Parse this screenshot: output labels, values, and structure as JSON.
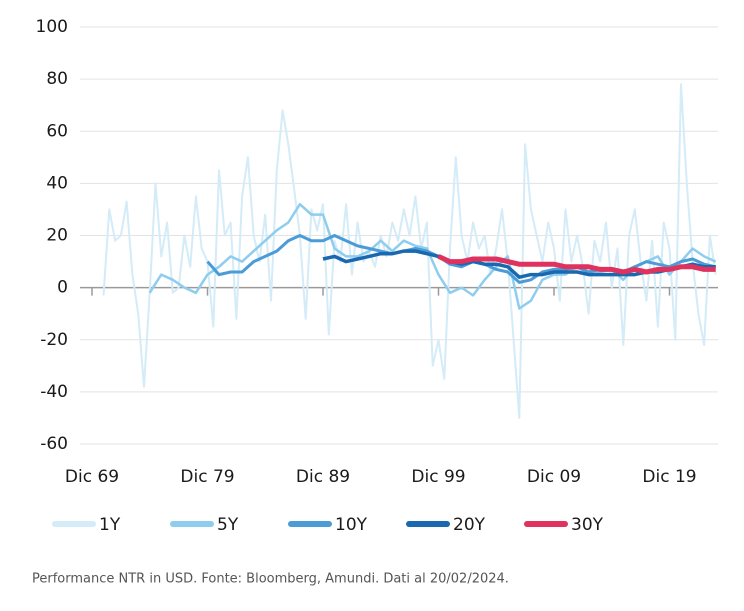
{
  "chart_data": {
    "type": "line",
    "footnote": "Performance NTR in USD. Fonte: Bloomberg, Amundi. Dati al 20/02/2024.",
    "xlim": [
      0,
      54.2
    ],
    "xticks": [
      {
        "value": 0,
        "label": "Dic 69"
      },
      {
        "value": 10,
        "label": "Dic 79"
      },
      {
        "value": 20,
        "label": "Dic 89"
      },
      {
        "value": 30,
        "label": "Dic 99"
      },
      {
        "value": 40,
        "label": "Dic 09"
      },
      {
        "value": 50,
        "label": "Dic 19"
      }
    ],
    "ylim": [
      -60,
      100
    ],
    "yticks": [
      -60,
      -40,
      -20,
      0,
      20,
      40,
      60,
      80,
      100
    ],
    "grid": true,
    "legend": "bottom",
    "series": [
      {
        "name": "1Y",
        "color": "#d4ebf8",
        "x": [
          1,
          1.5,
          2,
          2.5,
          3,
          3.5,
          4,
          4.5,
          5,
          5.5,
          6,
          6.5,
          7,
          7.5,
          8,
          8.5,
          9,
          9.5,
          10,
          10.5,
          11,
          11.5,
          12,
          12.5,
          13,
          13.5,
          14,
          14.5,
          15,
          15.5,
          16,
          16.5,
          17,
          17.5,
          18,
          18.5,
          19,
          19.5,
          20,
          20.5,
          21,
          21.5,
          22,
          22.5,
          23,
          23.5,
          24,
          24.5,
          25,
          25.5,
          26,
          26.5,
          27,
          27.5,
          28,
          28.5,
          29,
          29.5,
          30,
          30.5,
          31,
          31.5,
          32,
          32.5,
          33,
          33.5,
          34,
          34.5,
          35,
          35.5,
          36,
          36.5,
          37,
          37.5,
          38,
          38.5,
          39,
          39.5,
          40,
          40.5,
          41,
          41.5,
          42,
          42.5,
          43,
          43.5,
          44,
          44.5,
          45,
          45.5,
          46,
          46.5,
          47,
          47.5,
          48,
          48.5,
          49,
          49.5,
          50,
          50.5,
          51,
          51.5,
          52,
          52.5,
          53,
          53.5,
          54
        ],
        "values": [
          -3,
          30,
          18,
          20,
          33,
          5,
          -10,
          -38,
          -2,
          40,
          12,
          25,
          -2,
          0,
          20,
          8,
          35,
          15,
          10,
          -15,
          45,
          20,
          25,
          -12,
          35,
          50,
          20,
          10,
          28,
          -5,
          45,
          68,
          55,
          38,
          20,
          -12,
          30,
          22,
          32,
          -18,
          18,
          10,
          32,
          5,
          25,
          10,
          14,
          8,
          20,
          12,
          25,
          18,
          30,
          20,
          35,
          15,
          25,
          -30,
          -20,
          -35,
          15,
          50,
          20,
          10,
          25,
          15,
          20,
          5,
          15,
          30,
          10,
          -20,
          -50,
          55,
          30,
          20,
          10,
          25,
          15,
          -5,
          30,
          10,
          20,
          8,
          -10,
          18,
          10,
          25,
          0,
          15,
          -22,
          20,
          30,
          10,
          -5,
          18,
          -15,
          25,
          15,
          -20,
          78,
          40,
          10,
          -10,
          -22,
          20,
          5
        ]
      },
      {
        "name": "5Y",
        "color": "#8ecdee",
        "x": [
          5,
          6,
          7,
          8,
          9,
          10,
          11,
          12,
          13,
          14,
          15,
          16,
          17,
          18,
          19,
          20,
          21,
          22,
          23,
          24,
          25,
          26,
          27,
          28,
          29,
          30,
          31,
          32,
          33,
          34,
          35,
          36,
          37,
          38,
          39,
          40,
          41,
          42,
          43,
          44,
          45,
          46,
          47,
          48,
          49,
          50,
          51,
          52,
          53,
          54
        ],
        "values": [
          -2,
          5,
          3,
          0,
          -2,
          5,
          8,
          12,
          10,
          14,
          18,
          22,
          25,
          32,
          28,
          28,
          15,
          12,
          12,
          14,
          18,
          14,
          18,
          16,
          15,
          5,
          -2,
          0,
          -3,
          3,
          8,
          12,
          -8,
          -5,
          3,
          5,
          5,
          8,
          5,
          6,
          7,
          3,
          8,
          10,
          12,
          5,
          10,
          15,
          12,
          10
        ]
      },
      {
        "name": "10Y",
        "color": "#4b9bd7",
        "x": [
          10,
          11,
          12,
          13,
          14,
          15,
          16,
          17,
          18,
          19,
          20,
          21,
          22,
          23,
          24,
          25,
          26,
          27,
          28,
          29,
          30,
          31,
          32,
          33,
          34,
          35,
          36,
          37,
          38,
          39,
          40,
          41,
          42,
          43,
          44,
          45,
          46,
          47,
          48,
          49,
          50,
          51,
          52,
          53,
          54
        ],
        "values": [
          10,
          5,
          6,
          6,
          10,
          12,
          14,
          18,
          20,
          18,
          18,
          20,
          18,
          16,
          15,
          14,
          13,
          14,
          15,
          14,
          12,
          9,
          8,
          10,
          9,
          7,
          6,
          2,
          3,
          6,
          7,
          7,
          8,
          6,
          7,
          7,
          6,
          8,
          10,
          9,
          8,
          10,
          11,
          9,
          8
        ]
      },
      {
        "name": "20Y",
        "color": "#1a68b0",
        "x": [
          20,
          21,
          22,
          23,
          24,
          25,
          26,
          27,
          28,
          29,
          30,
          31,
          32,
          33,
          34,
          35,
          36,
          37,
          38,
          39,
          40,
          41,
          42,
          43,
          44,
          45,
          46,
          47,
          48,
          49,
          50,
          51,
          52,
          53,
          54
        ],
        "values": [
          11,
          12,
          10,
          11,
          12,
          13,
          13,
          14,
          14,
          13,
          12,
          10,
          9,
          10,
          9,
          9,
          8,
          4,
          5,
          5,
          6,
          6,
          6,
          5,
          5,
          5,
          5,
          5,
          6,
          6,
          7,
          8,
          9,
          8,
          8
        ]
      },
      {
        "name": "30Y",
        "color": "#e0325e",
        "x": [
          30,
          31,
          32,
          33,
          34,
          35,
          36,
          37,
          38,
          39,
          40,
          41,
          42,
          43,
          44,
          45,
          46,
          47,
          48,
          49,
          50,
          51,
          52,
          53,
          54
        ],
        "values": [
          12,
          10,
          10,
          11,
          11,
          11,
          10,
          9,
          9,
          9,
          9,
          8,
          8,
          8,
          7,
          7,
          6,
          7,
          6,
          7,
          7,
          8,
          8,
          7,
          7
        ]
      }
    ]
  }
}
